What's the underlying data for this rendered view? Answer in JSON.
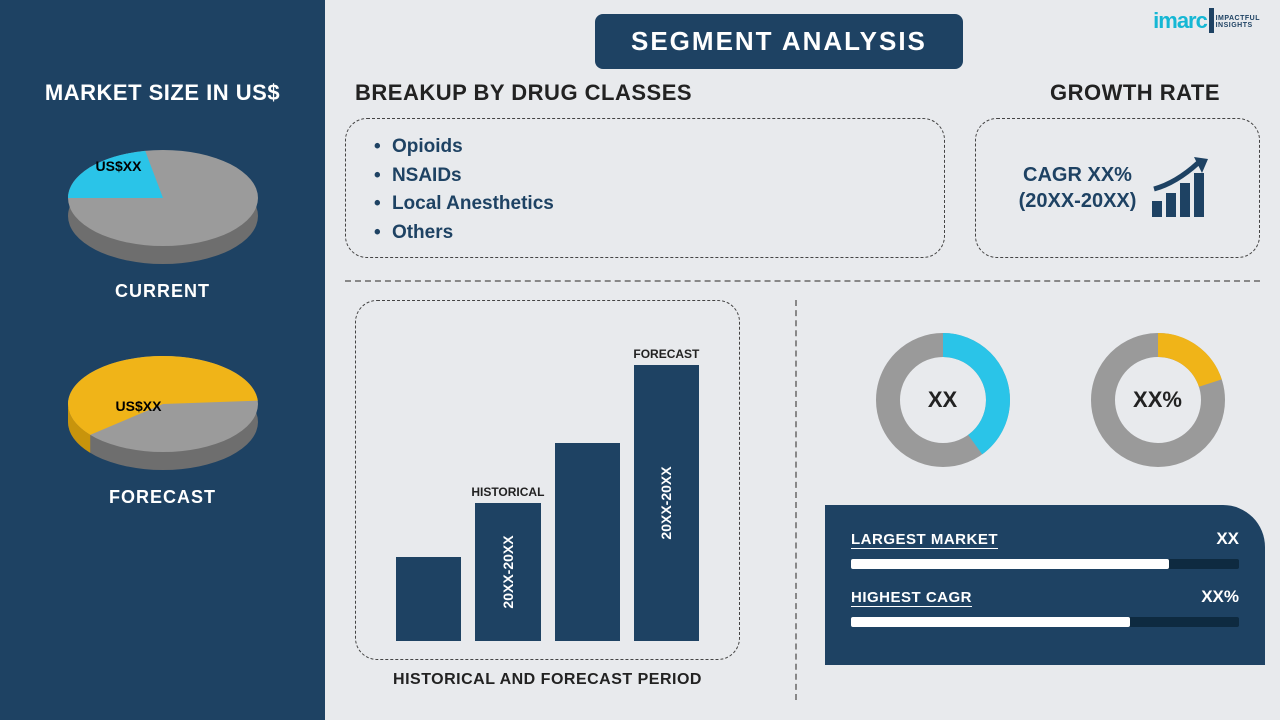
{
  "colors": {
    "navy": "#1e4263",
    "cyan": "#15b7d4",
    "cyan_bright": "#2ac4e8",
    "grey_pie": "#9b9b9b",
    "grey_pie_dark": "#7a7a7a",
    "yellow": "#f0b418",
    "yellow_dark": "#c8940c",
    "bg": "#e8eaed",
    "donut_grey": "#9a9a9a"
  },
  "logo": {
    "text": "imarc",
    "tagline1": "IMPACTFUL",
    "tagline2": "INSIGHTS"
  },
  "heading": "SEGMENT ANALYSIS",
  "sidebar": {
    "title": "MARKET SIZE IN US$",
    "pie_current": {
      "slice_pct": 22,
      "slice_color": "#2ac4e8",
      "rest_color": "#9b9b9b",
      "label": "US$XX",
      "caption": "CURRENT"
    },
    "pie_forecast": {
      "slice_pct": 60,
      "slice_color": "#f0b418",
      "rest_color": "#9b9b9b",
      "label": "US$XX",
      "caption": "FORECAST"
    }
  },
  "drug": {
    "title": "BREAKUP BY DRUG CLASSES",
    "items": [
      "Opioids",
      "NSAIDs",
      "Local Anesthetics",
      "Others"
    ]
  },
  "growth": {
    "title": "GROWTH RATE",
    "line1": "CAGR XX%",
    "line2": "(20XX-20XX)"
  },
  "bars": {
    "caption": "HISTORICAL AND FORECAST PERIOD",
    "items": [
      {
        "height_pct": 28,
        "top_label": "",
        "side_label": ""
      },
      {
        "height_pct": 46,
        "top_label": "HISTORICAL",
        "side_label": "20XX-20XX"
      },
      {
        "height_pct": 66,
        "top_label": "",
        "side_label": ""
      },
      {
        "height_pct": 92,
        "top_label": "FORECAST",
        "side_label": "20XX-20XX"
      }
    ],
    "bar_color": "#1e4263"
  },
  "donuts": {
    "d1": {
      "pct": 40,
      "color": "#2ac4e8",
      "rest": "#9a9a9a",
      "label": "XX",
      "thickness": 20
    },
    "d2": {
      "pct": 20,
      "color": "#f0b418",
      "rest": "#9a9a9a",
      "label": "XX%",
      "thickness": 20
    }
  },
  "metrics": {
    "rows": [
      {
        "label": "LARGEST MARKET",
        "value": "XX",
        "fill_pct": 82
      },
      {
        "label": "HIGHEST CAGR",
        "value": "XX%",
        "fill_pct": 72
      }
    ]
  }
}
